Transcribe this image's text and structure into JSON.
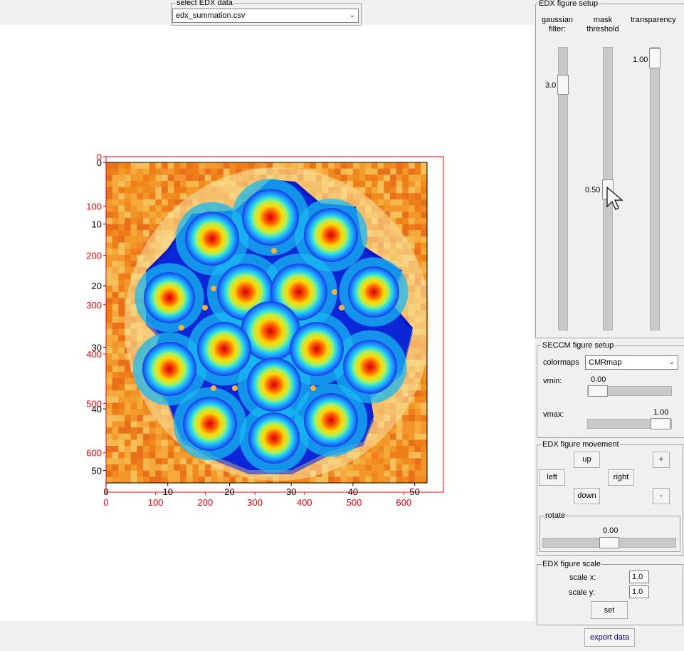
{
  "select_edx": {
    "title": "select EDX data",
    "value": "edx_summation.csv"
  },
  "edx_setup": {
    "title": "EDX figure setup",
    "gaussian_label": "gaussian\nfilter:",
    "mask_label": "mask\nthreshold",
    "transparency_label": "transparency",
    "gaussian_value": "3.0",
    "mask_value": "0.50",
    "transparency_value": "1.00",
    "gaussian_level": 0.1,
    "mask_level": 0.5,
    "transparency_level": 1.0
  },
  "seccm_setup": {
    "title": "SECCM figure setup",
    "colormaps_label": "colormaps",
    "colormap_value": "CMRmap",
    "vmin_label": "vmin:",
    "vmin_value": "0.00",
    "vmax_label": "vmax:",
    "vmax_value": "1.00"
  },
  "movement": {
    "title": "EDX figure movement",
    "up": "up",
    "left": "left",
    "right": "right",
    "down": "down",
    "plus": "+",
    "minus": "-",
    "rotate_title": "rotate",
    "rotate_value": "0.00"
  },
  "scale": {
    "title": "EDX figure scale",
    "scale_x_label": "scale x:",
    "scale_x_value": "1.0",
    "scale_y_label": "scale y:",
    "scale_y_value": "1.0",
    "set": "set"
  },
  "export_label": "export data",
  "chart_data": {
    "type": "heatmap",
    "edx_axes": {
      "x_ticks": [
        "0",
        "10",
        "20",
        "30",
        "40",
        "50"
      ],
      "y_ticks": [
        "0",
        "10",
        "20",
        "30",
        "40",
        "50"
      ],
      "xlim": [
        0,
        52
      ],
      "ylim": [
        0,
        52
      ]
    },
    "seccm_axes": {
      "x_ticks": [
        "0",
        "100",
        "200",
        "300",
        "400",
        "500",
        "600"
      ],
      "y_ticks": [
        "0",
        "100",
        "200",
        "300",
        "400",
        "500",
        "600"
      ],
      "xlim": [
        0,
        680
      ],
      "ylim": [
        0,
        680
      ],
      "color": "#ff0000"
    }
  }
}
